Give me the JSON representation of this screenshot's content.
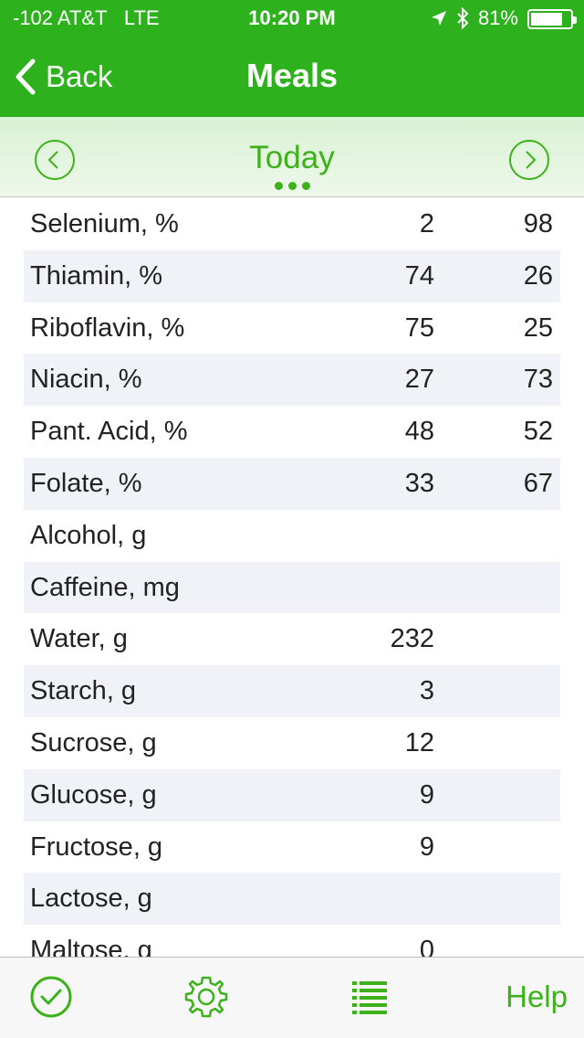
{
  "status": {
    "carrier": "-102 AT&T",
    "network": "LTE",
    "time": "10:20 PM",
    "battery": "81%",
    "battery_level": 0.81
  },
  "nav": {
    "back_label": "Back",
    "title": "Meals"
  },
  "date_selector": {
    "label": "Today"
  },
  "rows": [
    {
      "name": "Selenium, %",
      "v1": "2",
      "v2": "98"
    },
    {
      "name": "Thiamin, %",
      "v1": "74",
      "v2": "26"
    },
    {
      "name": "Riboflavin, %",
      "v1": "75",
      "v2": "25"
    },
    {
      "name": "Niacin, %",
      "v1": "27",
      "v2": "73"
    },
    {
      "name": "Pant. Acid, %",
      "v1": "48",
      "v2": "52"
    },
    {
      "name": "Folate, %",
      "v1": "33",
      "v2": "67"
    },
    {
      "name": "Alcohol, g",
      "v1": "",
      "v2": ""
    },
    {
      "name": "Caffeine, mg",
      "v1": "",
      "v2": ""
    },
    {
      "name": "Water, g",
      "v1": "232",
      "v2": ""
    },
    {
      "name": "Starch, g",
      "v1": "3",
      "v2": ""
    },
    {
      "name": "Sucrose, g",
      "v1": "12",
      "v2": ""
    },
    {
      "name": "Glucose, g",
      "v1": "9",
      "v2": ""
    },
    {
      "name": "Fructose, g",
      "v1": "9",
      "v2": ""
    },
    {
      "name": "Lactose, g",
      "v1": "",
      "v2": ""
    },
    {
      "name": "Maltose, g",
      "v1": "0",
      "v2": ""
    }
  ],
  "tabbar": {
    "help_label": "Help"
  },
  "colors": {
    "brand_green": "#2db11d",
    "accent_green": "#3cb21a"
  },
  "icons": [
    "location-arrow-icon",
    "bluetooth-icon",
    "battery-icon",
    "chevron-left-icon",
    "prev-circle-icon",
    "next-circle-icon",
    "checkmark-circle-icon",
    "gear-icon",
    "list-icon"
  ]
}
